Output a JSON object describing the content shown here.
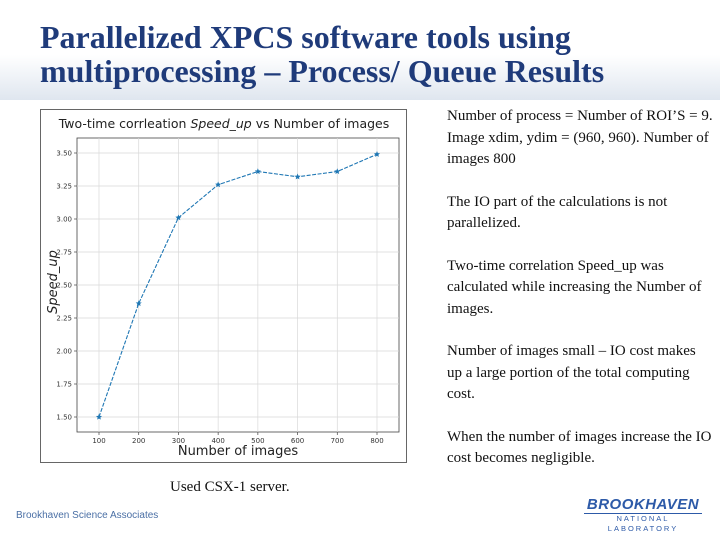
{
  "slide": {
    "title": "Parallelized XPCS software tools using multiprocessing – Process/ Queue Results",
    "caption": "Used CSX-1 server.",
    "notes": [
      "Number of process = Number of ROI’S = 9. Image xdim, ydim = (960, 960). Number of images 800",
      "The IO part of the calculations is not parallelized.",
      "Two-time correlation Speed_up was calculated while increasing the Number of images.",
      "Number of images small – IO cost makes up a large portion of the total computing cost.",
      "When the number of images increase the IO cost becomes negligible."
    ],
    "footer_left": "Brookhaven Science Associates",
    "logo_main": "BROOKHAVEN",
    "logo_sub": "NATIONAL LABORATORY"
  },
  "chart_data": {
    "type": "line",
    "title": "Two-time corrleation Speed_up vs Number of images",
    "xlabel": "Number of images",
    "ylabel": "Speed_up",
    "x": [
      100,
      200,
      300,
      400,
      500,
      600,
      700,
      800
    ],
    "y": [
      1.5,
      2.36,
      3.01,
      3.26,
      3.36,
      3.32,
      3.36,
      3.49
    ],
    "xticks": [
      "100",
      "200",
      "300",
      "400",
      "500",
      "600",
      "700",
      "800"
    ],
    "yticks": [
      "1.50",
      "1.75",
      "2.00",
      "2.25",
      "2.50",
      "2.75",
      "3.00",
      "3.25",
      "3.50"
    ],
    "xlim": [
      100,
      800
    ],
    "ylim": [
      1.5,
      3.5
    ],
    "grid": true,
    "color": "#1f77b4"
  }
}
